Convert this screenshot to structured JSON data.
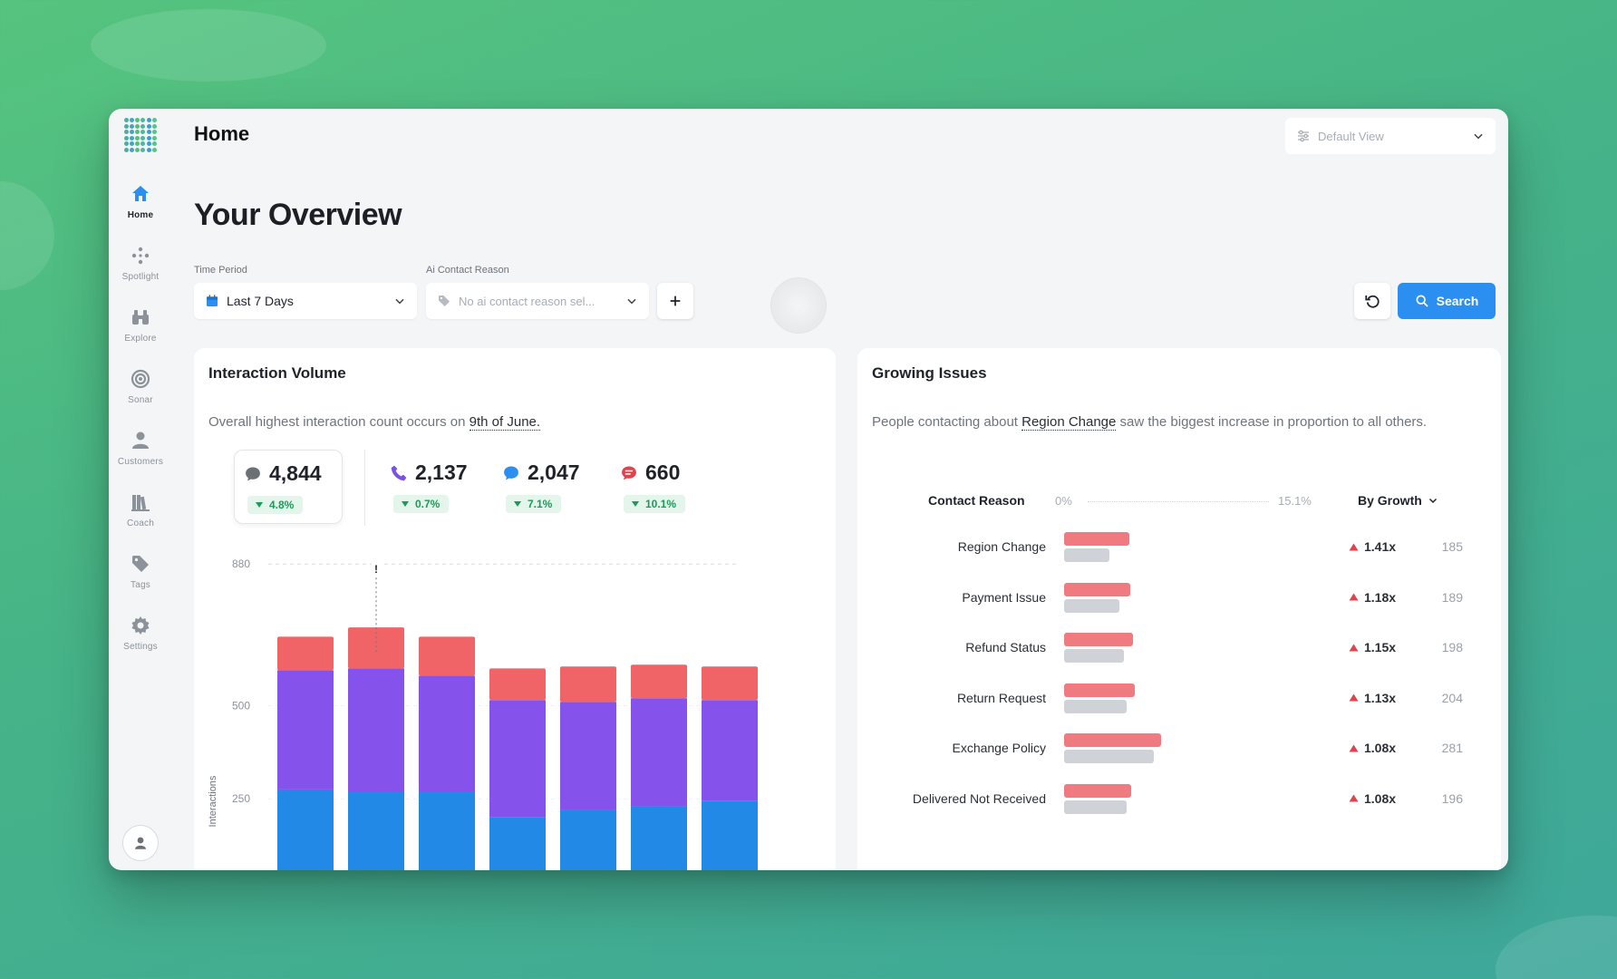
{
  "app": {
    "page_title": "Home"
  },
  "sidebar": {
    "items": [
      {
        "label": "Home",
        "icon": "home-icon",
        "active": true
      },
      {
        "label": "Spotlight",
        "icon": "spotlight-icon"
      },
      {
        "label": "Explore",
        "icon": "binoculars-icon"
      },
      {
        "label": "Sonar",
        "icon": "sonar-icon"
      },
      {
        "label": "Customers",
        "icon": "user-icon"
      },
      {
        "label": "Coach",
        "icon": "books-icon"
      },
      {
        "label": "Tags",
        "icon": "tag-icon"
      },
      {
        "label": "Settings",
        "icon": "gear-icon"
      }
    ]
  },
  "header": {
    "view_selector": "Default View"
  },
  "main": {
    "heading": "Your Overview",
    "filters": {
      "time_period_label": "Time Period",
      "time_period_value": "Last 7 Days",
      "contact_reason_label": "Ai Contact Reason",
      "contact_reason_placeholder": "No ai contact reason sel..."
    },
    "search_label": "Search"
  },
  "interaction_volume": {
    "title": "Interaction Volume",
    "desc_prefix": "Overall highest interaction count occurs on ",
    "desc_link": "9th of June.",
    "stats": [
      {
        "value": "4,844",
        "change": "4.8%",
        "icon": "chat-icon",
        "color": "#6b7075"
      },
      {
        "value": "2,137",
        "change": "0.7%",
        "icon": "phone-icon",
        "color": "#7b52e6"
      },
      {
        "value": "2,047",
        "change": "7.1%",
        "icon": "message-icon",
        "color": "#2a8ff0"
      },
      {
        "value": "660",
        "change": "10.1%",
        "icon": "sms-icon",
        "color": "#e0434c"
      }
    ]
  },
  "chart_data": {
    "type": "bar",
    "stacked": true,
    "ylabel": "Interactions",
    "yticks": [
      250,
      500,
      880
    ],
    "ylim": [
      0,
      900
    ],
    "peak_marker": {
      "index": 1,
      "label": "!"
    },
    "categories": [
      "",
      "",
      "",
      "",
      "",
      "",
      ""
    ],
    "series": [
      {
        "color": "#2389e6",
        "values": [
          275,
          270,
          270,
          200,
          220,
          230,
          245
        ]
      },
      {
        "color": "#8553ec",
        "values": [
          320,
          330,
          310,
          315,
          290,
          290,
          270
        ]
      },
      {
        "color": "#f06468",
        "values": [
          90,
          110,
          105,
          85,
          95,
          90,
          90
        ]
      }
    ]
  },
  "growing_issues": {
    "title": "Growing Issues",
    "desc_prefix": "People contacting about ",
    "desc_link": "Region Change",
    "desc_suffix": " saw the biggest increase in proportion to all others.",
    "col_reason": "Contact Reason",
    "axis_min": "0%",
    "axis_max": "15.1%",
    "sort_label": "By Growth",
    "rows": [
      {
        "name": "Region Change",
        "current": 5.4,
        "previous": 3.8,
        "growth": "1.41x",
        "count": "185"
      },
      {
        "name": "Payment Issue",
        "current": 5.5,
        "previous": 4.6,
        "growth": "1.18x",
        "count": "189"
      },
      {
        "name": "Refund Status",
        "current": 5.7,
        "previous": 5.0,
        "growth": "1.15x",
        "count": "198"
      },
      {
        "name": "Return Request",
        "current": 5.9,
        "previous": 5.2,
        "growth": "1.13x",
        "count": "204"
      },
      {
        "name": "Exchange Policy",
        "current": 8.1,
        "previous": 7.5,
        "growth": "1.08x",
        "count": "281"
      },
      {
        "name": "Delivered Not Received",
        "current": 5.6,
        "previous": 5.2,
        "growth": "1.08x",
        "count": "196"
      }
    ]
  }
}
